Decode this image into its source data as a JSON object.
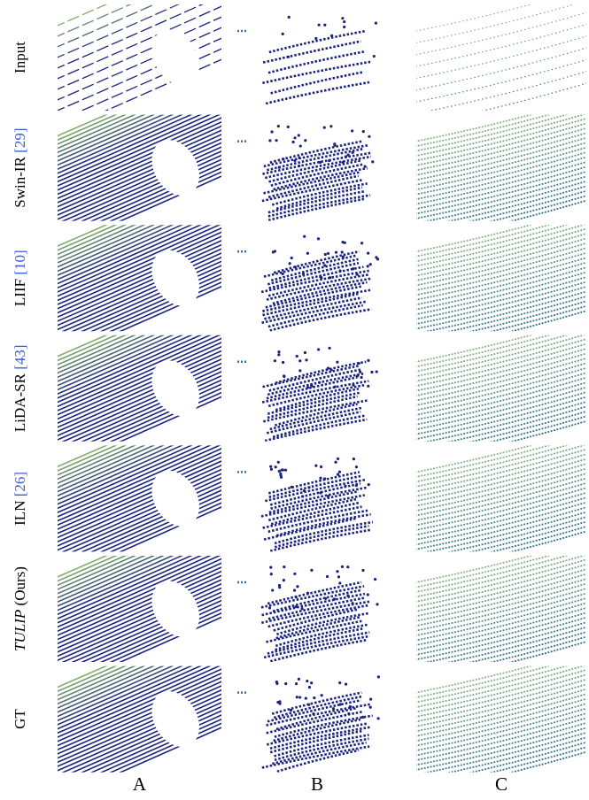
{
  "figure": {
    "rows": [
      {
        "label": "Input"
      },
      {
        "label": "Swin-IR",
        "citation": "[29]"
      },
      {
        "label": "LIIF",
        "citation": "[10]"
      },
      {
        "label": "LiDA-SR",
        "citation": "[43]"
      },
      {
        "label": "ILN",
        "citation": "[26]"
      },
      {
        "label": "TULIP",
        "note": "(Ours)"
      },
      {
        "label": "GT"
      }
    ],
    "columns": [
      "A",
      "B",
      "C"
    ]
  }
}
